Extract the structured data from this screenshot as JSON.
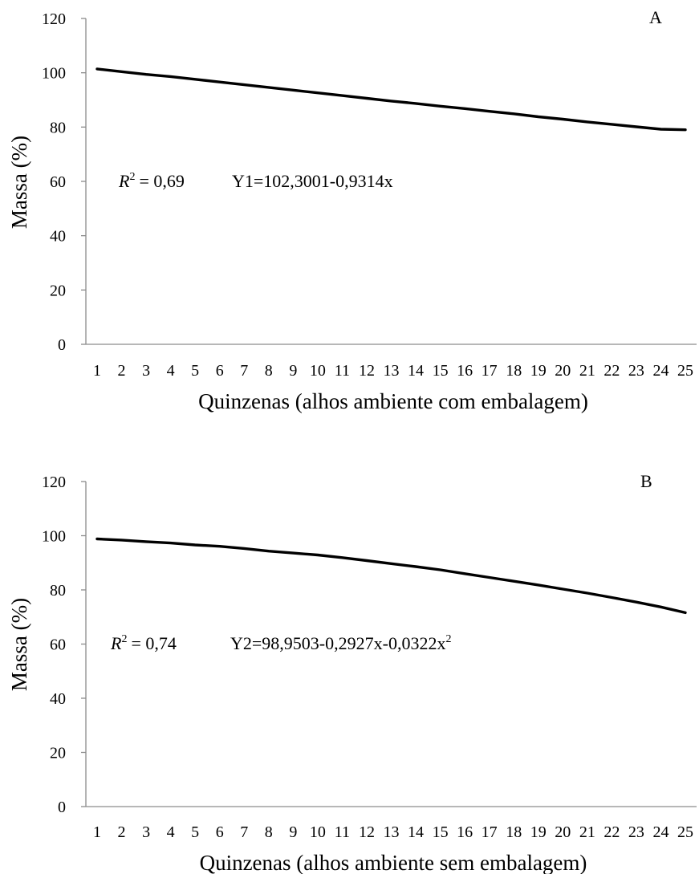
{
  "chart_data": [
    {
      "type": "line",
      "panel_label": "A",
      "xlabel": "Quinzenas (alhos ambiente com embalagem)",
      "ylabel": "Massa (%)",
      "ylim": [
        0,
        120
      ],
      "yticks": [
        "0",
        "20",
        "40",
        "60",
        "80",
        "100",
        "120"
      ],
      "categories": [
        "1",
        "2",
        "3",
        "4",
        "5",
        "6",
        "7",
        "8",
        "9",
        "10",
        "11",
        "12",
        "13",
        "14",
        "15",
        "16",
        "17",
        "18",
        "19",
        "20",
        "21",
        "22",
        "23",
        "24",
        "25"
      ],
      "r2_label": "R",
      "r2_value": "= 0,69",
      "equation": "Y1=102,3001-0,9314x",
      "series": [
        {
          "values": [
            101.4,
            100.4,
            99.4,
            98.6,
            97.6,
            96.6,
            95.6,
            94.6,
            93.6,
            92.6,
            91.6,
            90.6,
            89.6,
            88.7,
            87.7,
            86.8,
            85.8,
            84.9,
            83.8,
            82.9,
            81.9,
            81.0,
            80.1,
            79.2,
            79.0
          ]
        }
      ],
      "grid": false,
      "colors": {
        "line": "#000000",
        "axis": "#8c8c8c"
      }
    },
    {
      "type": "line",
      "panel_label": "B",
      "xlabel": "Quinzenas (alhos ambiente sem embalagem)",
      "ylabel": "Massa (%)",
      "ylim": [
        0,
        120
      ],
      "yticks": [
        "0",
        "20",
        "40",
        "60",
        "80",
        "100",
        "120"
      ],
      "categories": [
        "1",
        "2",
        "3",
        "4",
        "5",
        "6",
        "7",
        "8",
        "9",
        "10",
        "11",
        "12",
        "13",
        "14",
        "15",
        "16",
        "17",
        "18",
        "19",
        "20",
        "21",
        "22",
        "23",
        "24",
        "25"
      ],
      "r2_label": "R",
      "r2_value": "= 0,74",
      "equation": "Y2=98,9503-0,2927x-0,0322x",
      "equation_exponent": "2",
      "series": [
        {
          "values": [
            98.8,
            98.4,
            97.8,
            97.3,
            96.6,
            96.1,
            95.3,
            94.3,
            93.6,
            92.9,
            91.9,
            90.8,
            89.7,
            88.6,
            87.4,
            86.0,
            84.6,
            83.2,
            81.8,
            80.3,
            78.8,
            77.2,
            75.5,
            73.7,
            71.6
          ]
        }
      ],
      "grid": false,
      "colors": {
        "line": "#000000",
        "axis": "#8c8c8c"
      }
    }
  ]
}
